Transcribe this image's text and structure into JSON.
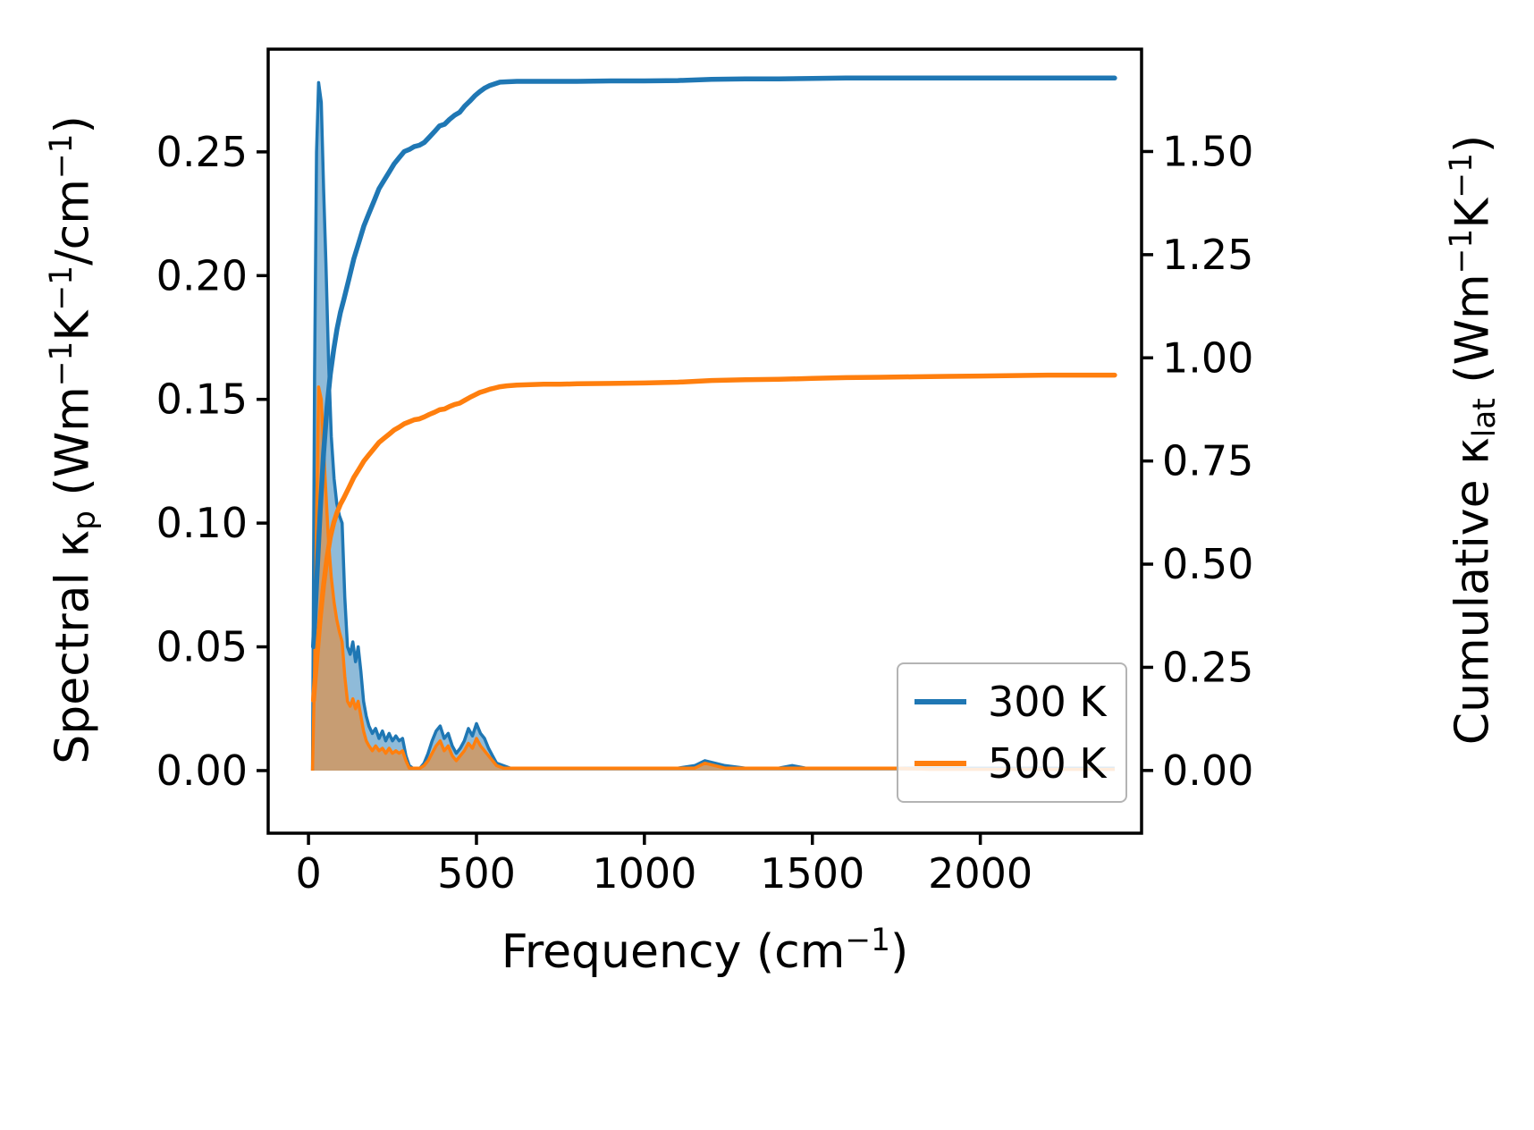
{
  "chart_data": {
    "type": "line+area",
    "dual_axis": true,
    "title": "",
    "xlabel_segments": [
      {
        "t": "Frequency (cm"
      },
      {
        "t": "−1",
        "sup": true
      },
      {
        "t": ")"
      }
    ],
    "ylabel_left_segments": [
      {
        "t": "Spectral κ"
      },
      {
        "t": "p",
        "sub": true
      },
      {
        "t": " (Wm"
      },
      {
        "t": "−1",
        "sup": true
      },
      {
        "t": "K"
      },
      {
        "t": "−1",
        "sup": true
      },
      {
        "t": "/cm"
      },
      {
        "t": "−1",
        "sup": true
      },
      {
        "t": ")"
      }
    ],
    "ylabel_right_segments": [
      {
        "t": "Cumulative κ"
      },
      {
        "t": "lat",
        "sub": true
      },
      {
        "t": " (Wm"
      },
      {
        "t": "−1",
        "sup": true
      },
      {
        "t": "K"
      },
      {
        "t": "−1",
        "sup": true
      },
      {
        "t": ")"
      }
    ],
    "xlim": [
      -120,
      2480
    ],
    "ylim_left": [
      -0.0253,
      0.2915
    ],
    "ylim_right": [
      -0.152,
      1.748
    ],
    "x_ticks": {
      "values": [
        0,
        500,
        1000,
        1500,
        2000
      ],
      "labels": [
        "0",
        "500",
        "1000",
        "1500",
        "2000"
      ]
    },
    "y_ticks_left": {
      "values": [
        0,
        0.05,
        0.1,
        0.15,
        0.2,
        0.25
      ],
      "labels": [
        "0.00",
        "0.05",
        "0.10",
        "0.15",
        "0.20",
        "0.25"
      ]
    },
    "y_ticks_right": {
      "values": [
        0,
        0.25,
        0.5,
        0.75,
        1.0,
        1.25,
        1.5
      ],
      "labels": [
        "0.00",
        "0.25",
        "0.50",
        "0.75",
        "1.00",
        "1.25",
        "1.50"
      ]
    },
    "fill_alpha": 0.5,
    "spectral_x": [
      12,
      18,
      24,
      30,
      38,
      45,
      52,
      60,
      68,
      76,
      84,
      92,
      100,
      108,
      116,
      124,
      132,
      140,
      148,
      156,
      164,
      172,
      180,
      190,
      200,
      210,
      220,
      230,
      240,
      250,
      260,
      270,
      280,
      290,
      300,
      310,
      320,
      332,
      344,
      356,
      368,
      380,
      392,
      404,
      416,
      428,
      440,
      452,
      464,
      476,
      488,
      500,
      512,
      524,
      536,
      548,
      560,
      580,
      600,
      650,
      700,
      800,
      900,
      1000,
      1100,
      1150,
      1180,
      1210,
      1240,
      1300,
      1400,
      1440,
      1480,
      1550,
      1650,
      1750,
      1850,
      1950,
      2050,
      2150,
      2250,
      2350,
      2400
    ],
    "cumulative_x": [
      15,
      25,
      35,
      45,
      55,
      65,
      75,
      85,
      95,
      105,
      120,
      135,
      150,
      165,
      180,
      195,
      210,
      225,
      240,
      255,
      270,
      285,
      300,
      315,
      330,
      345,
      360,
      375,
      390,
      405,
      420,
      435,
      450,
      465,
      480,
      495,
      510,
      525,
      540,
      555,
      570,
      590,
      620,
      660,
      700,
      750,
      800,
      900,
      1000,
      1100,
      1200,
      1300,
      1400,
      1500,
      1600,
      1700,
      1800,
      1900,
      2000,
      2100,
      2200,
      2300,
      2400
    ],
    "series": [
      {
        "name": "300 K",
        "color": "#1f77b4",
        "spectral_y": [
          0.0,
          0.16,
          0.25,
          0.278,
          0.27,
          0.235,
          0.205,
          0.165,
          0.135,
          0.118,
          0.108,
          0.103,
          0.1,
          0.07,
          0.05,
          0.047,
          0.052,
          0.044,
          0.05,
          0.04,
          0.028,
          0.022,
          0.018,
          0.015,
          0.017,
          0.013,
          0.016,
          0.012,
          0.015,
          0.012,
          0.014,
          0.012,
          0.013,
          0.006,
          0.002,
          0.001,
          0.001,
          0.001,
          0.003,
          0.007,
          0.012,
          0.016,
          0.018,
          0.013,
          0.015,
          0.01,
          0.007,
          0.009,
          0.012,
          0.017,
          0.014,
          0.019,
          0.015,
          0.013,
          0.009,
          0.006,
          0.003,
          0.002,
          0.001,
          0.001,
          0.001,
          0.001,
          0.001,
          0.001,
          0.001,
          0.002,
          0.004,
          0.003,
          0.002,
          0.001,
          0.001,
          0.002,
          0.001,
          0.001,
          0.001,
          0.001,
          0.001,
          0.001,
          0.001,
          0.001,
          0.001,
          0.001,
          0.001
        ],
        "cumulative_y": [
          0.3,
          0.47,
          0.63,
          0.77,
          0.88,
          0.96,
          1.02,
          1.07,
          1.11,
          1.14,
          1.19,
          1.24,
          1.28,
          1.32,
          1.35,
          1.38,
          1.41,
          1.43,
          1.45,
          1.47,
          1.485,
          1.5,
          1.505,
          1.512,
          1.515,
          1.522,
          1.535,
          1.548,
          1.562,
          1.566,
          1.578,
          1.588,
          1.595,
          1.61,
          1.622,
          1.635,
          1.645,
          1.654,
          1.66,
          1.664,
          1.668,
          1.669,
          1.67,
          1.67,
          1.67,
          1.67,
          1.67,
          1.671,
          1.671,
          1.672,
          1.675,
          1.676,
          1.676,
          1.677,
          1.678,
          1.678,
          1.678,
          1.678,
          1.678,
          1.678,
          1.678,
          1.678,
          1.678
        ]
      },
      {
        "name": "500 K",
        "color": "#ff7f0e",
        "spectral_y": [
          0.0,
          0.04,
          0.1,
          0.155,
          0.15,
          0.13,
          0.112,
          0.092,
          0.078,
          0.068,
          0.061,
          0.056,
          0.052,
          0.038,
          0.028,
          0.026,
          0.029,
          0.025,
          0.028,
          0.022,
          0.016,
          0.012,
          0.01,
          0.008,
          0.01,
          0.008,
          0.009,
          0.007,
          0.009,
          0.007,
          0.008,
          0.007,
          0.008,
          0.004,
          0.001,
          0.001,
          0.001,
          0.001,
          0.002,
          0.004,
          0.007,
          0.01,
          0.012,
          0.008,
          0.01,
          0.006,
          0.004,
          0.006,
          0.008,
          0.011,
          0.009,
          0.013,
          0.01,
          0.008,
          0.006,
          0.004,
          0.002,
          0.001,
          0.001,
          0.001,
          0.001,
          0.001,
          0.001,
          0.001,
          0.001,
          0.001,
          0.003,
          0.002,
          0.001,
          0.001,
          0.001,
          0.001,
          0.001,
          0.001,
          0.001,
          0.001,
          0.0005,
          0.0005,
          0.0005,
          0.0005,
          0.0005,
          0.0005,
          0.0005
        ],
        "cumulative_y": [
          0.17,
          0.275,
          0.37,
          0.45,
          0.515,
          0.565,
          0.6,
          0.625,
          0.645,
          0.66,
          0.685,
          0.71,
          0.73,
          0.75,
          0.765,
          0.78,
          0.795,
          0.805,
          0.815,
          0.825,
          0.832,
          0.84,
          0.845,
          0.85,
          0.852,
          0.857,
          0.863,
          0.868,
          0.874,
          0.876,
          0.882,
          0.887,
          0.89,
          0.897,
          0.904,
          0.91,
          0.916,
          0.92,
          0.924,
          0.927,
          0.93,
          0.932,
          0.934,
          0.935,
          0.936,
          0.936,
          0.937,
          0.938,
          0.939,
          0.941,
          0.945,
          0.947,
          0.948,
          0.95,
          0.952,
          0.953,
          0.954,
          0.955,
          0.956,
          0.957,
          0.958,
          0.958,
          0.958
        ]
      }
    ],
    "legend": {
      "position": "lower right",
      "entries": [
        {
          "label": "300 K"
        },
        {
          "label": "500 K"
        }
      ]
    }
  }
}
